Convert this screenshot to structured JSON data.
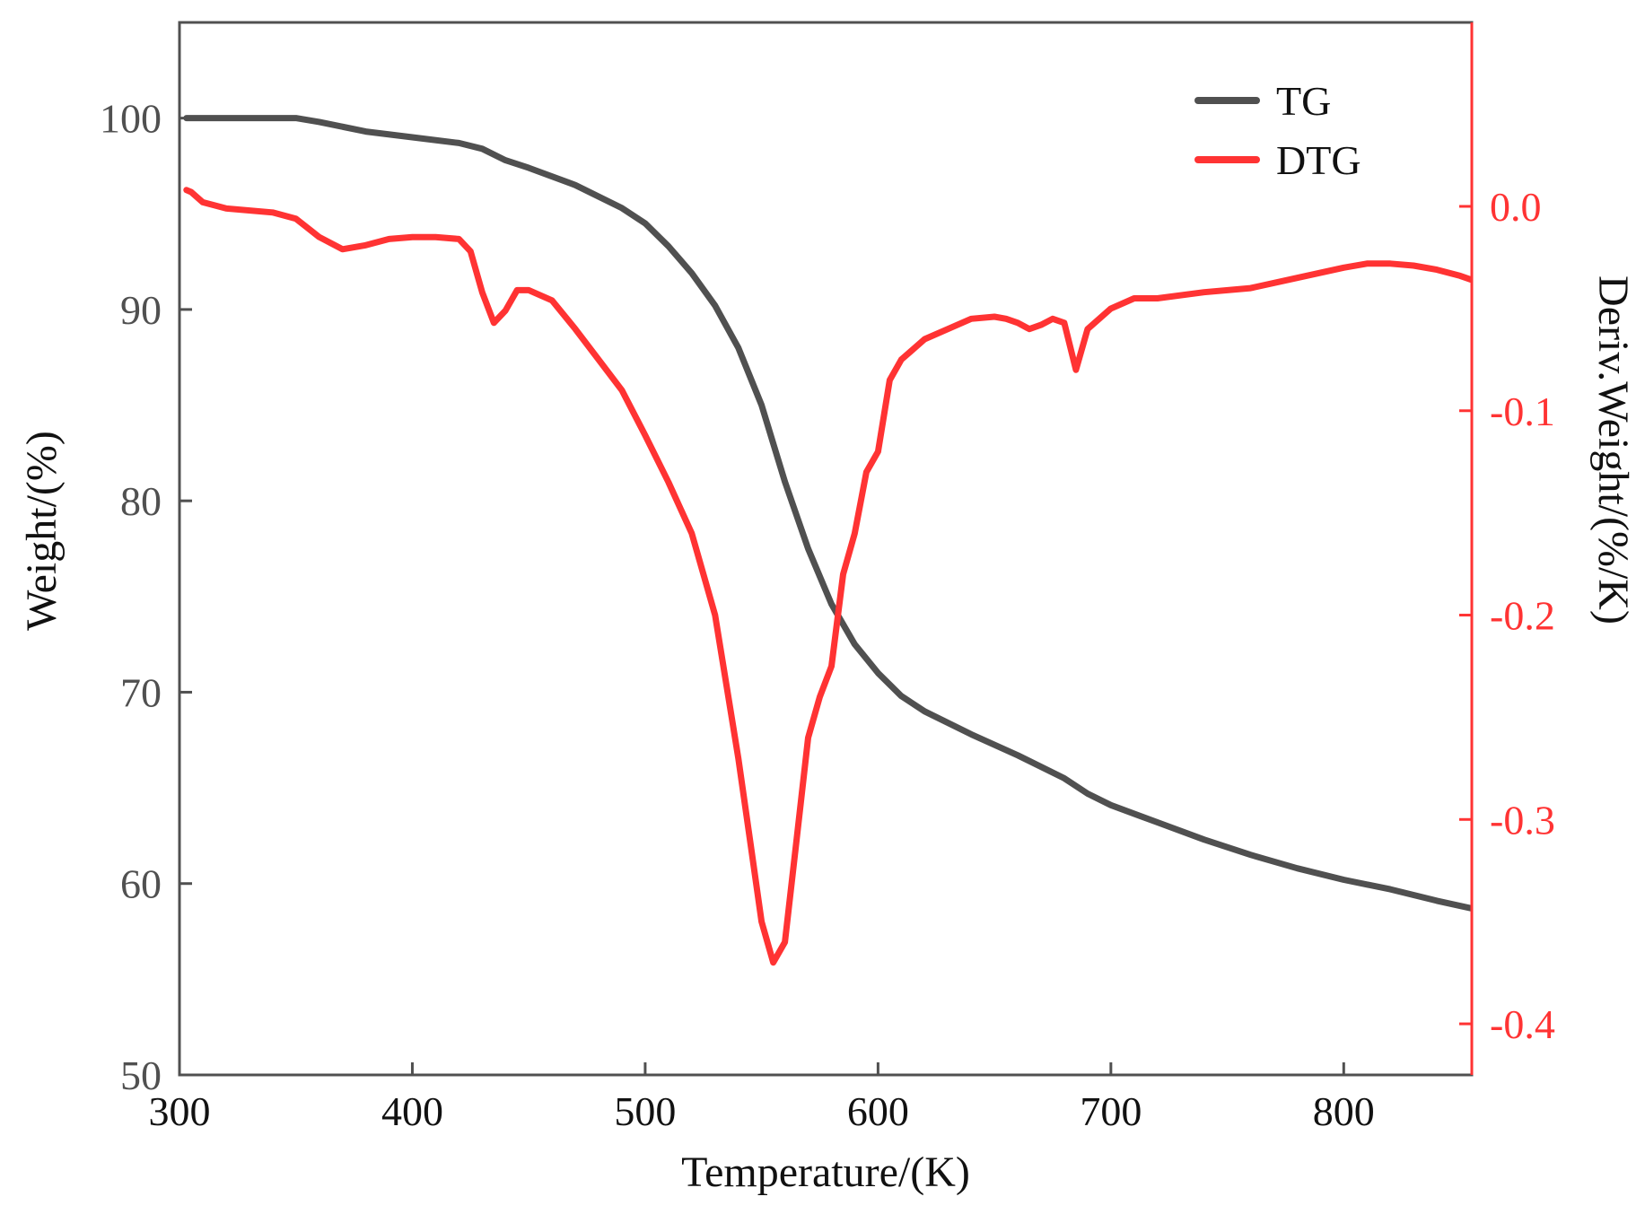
{
  "chart_data": {
    "type": "line",
    "title": "",
    "xlabel": "Temperature/(K)",
    "ylabel": "Weight/(%)",
    "y2label": "Deriv.Weight/(%/K)",
    "xlim": [
      300,
      855
    ],
    "ylim": [
      50,
      105
    ],
    "y2lim": [
      -0.425,
      0.09
    ],
    "x_ticks": [
      300,
      400,
      500,
      600,
      700,
      800
    ],
    "x_tick_labels": [
      "300",
      "400",
      "500",
      "600",
      "700",
      "800"
    ],
    "y_ticks": [
      50,
      60,
      70,
      80,
      90,
      100
    ],
    "y_tick_labels": [
      "50",
      "60",
      "70",
      "80",
      "90",
      "100"
    ],
    "y2_ticks": [
      0.0,
      -0.1,
      -0.2,
      -0.3,
      -0.4
    ],
    "y2_tick_labels": [
      "0.0",
      "-0.1",
      "-0.2",
      "-0.3",
      "-0.4"
    ],
    "legend_position": "top-right",
    "colors": {
      "tg": "#505050",
      "dtg": "#ff3333",
      "left_axis": "#505050",
      "right_axis": "#ff3333"
    },
    "series": [
      {
        "name": "TG",
        "axis": "left",
        "x": [
          303,
          350,
          360,
          380,
          400,
          420,
          430,
          440,
          450,
          470,
          490,
          500,
          510,
          520,
          530,
          540,
          550,
          560,
          570,
          580,
          590,
          600,
          610,
          620,
          640,
          660,
          680,
          690,
          700,
          720,
          740,
          760,
          780,
          800,
          820,
          840,
          855
        ],
        "values": [
          100,
          100,
          99.8,
          99.3,
          99.0,
          98.7,
          98.4,
          97.8,
          97.4,
          96.5,
          95.3,
          94.5,
          93.3,
          91.9,
          90.2,
          88.0,
          85.0,
          81.0,
          77.5,
          74.6,
          72.5,
          71.0,
          69.8,
          69.0,
          67.8,
          66.7,
          65.5,
          64.7,
          64.1,
          63.2,
          62.3,
          61.5,
          60.8,
          60.2,
          59.7,
          59.1,
          58.7
        ]
      },
      {
        "name": "DTG",
        "axis": "right",
        "x": [
          303,
          305,
          310,
          320,
          340,
          350,
          360,
          370,
          380,
          390,
          400,
          410,
          420,
          425,
          430,
          435,
          440,
          445,
          450,
          460,
          470,
          480,
          490,
          500,
          510,
          520,
          530,
          540,
          545,
          550,
          555,
          560,
          565,
          570,
          575,
          580,
          585,
          590,
          595,
          600,
          605,
          610,
          620,
          630,
          640,
          650,
          655,
          660,
          665,
          670,
          675,
          680,
          685,
          690,
          700,
          710,
          720,
          740,
          760,
          780,
          800,
          810,
          820,
          830,
          840,
          850,
          855
        ],
        "values": [
          0.008,
          0.007,
          0.002,
          -0.001,
          -0.003,
          -0.006,
          -0.015,
          -0.021,
          -0.019,
          -0.016,
          -0.015,
          -0.015,
          -0.016,
          -0.022,
          -0.042,
          -0.057,
          -0.051,
          -0.041,
          -0.041,
          -0.046,
          -0.06,
          -0.075,
          -0.09,
          -0.112,
          -0.135,
          -0.16,
          -0.2,
          -0.27,
          -0.31,
          -0.35,
          -0.37,
          -0.36,
          -0.31,
          -0.26,
          -0.24,
          -0.225,
          -0.18,
          -0.16,
          -0.13,
          -0.12,
          -0.085,
          -0.075,
          -0.065,
          -0.06,
          -0.055,
          -0.054,
          -0.055,
          -0.057,
          -0.06,
          -0.058,
          -0.055,
          -0.057,
          -0.08,
          -0.06,
          -0.05,
          -0.045,
          -0.045,
          -0.042,
          -0.04,
          -0.035,
          -0.03,
          -0.028,
          -0.028,
          -0.029,
          -0.031,
          -0.034,
          -0.036
        ]
      }
    ]
  }
}
